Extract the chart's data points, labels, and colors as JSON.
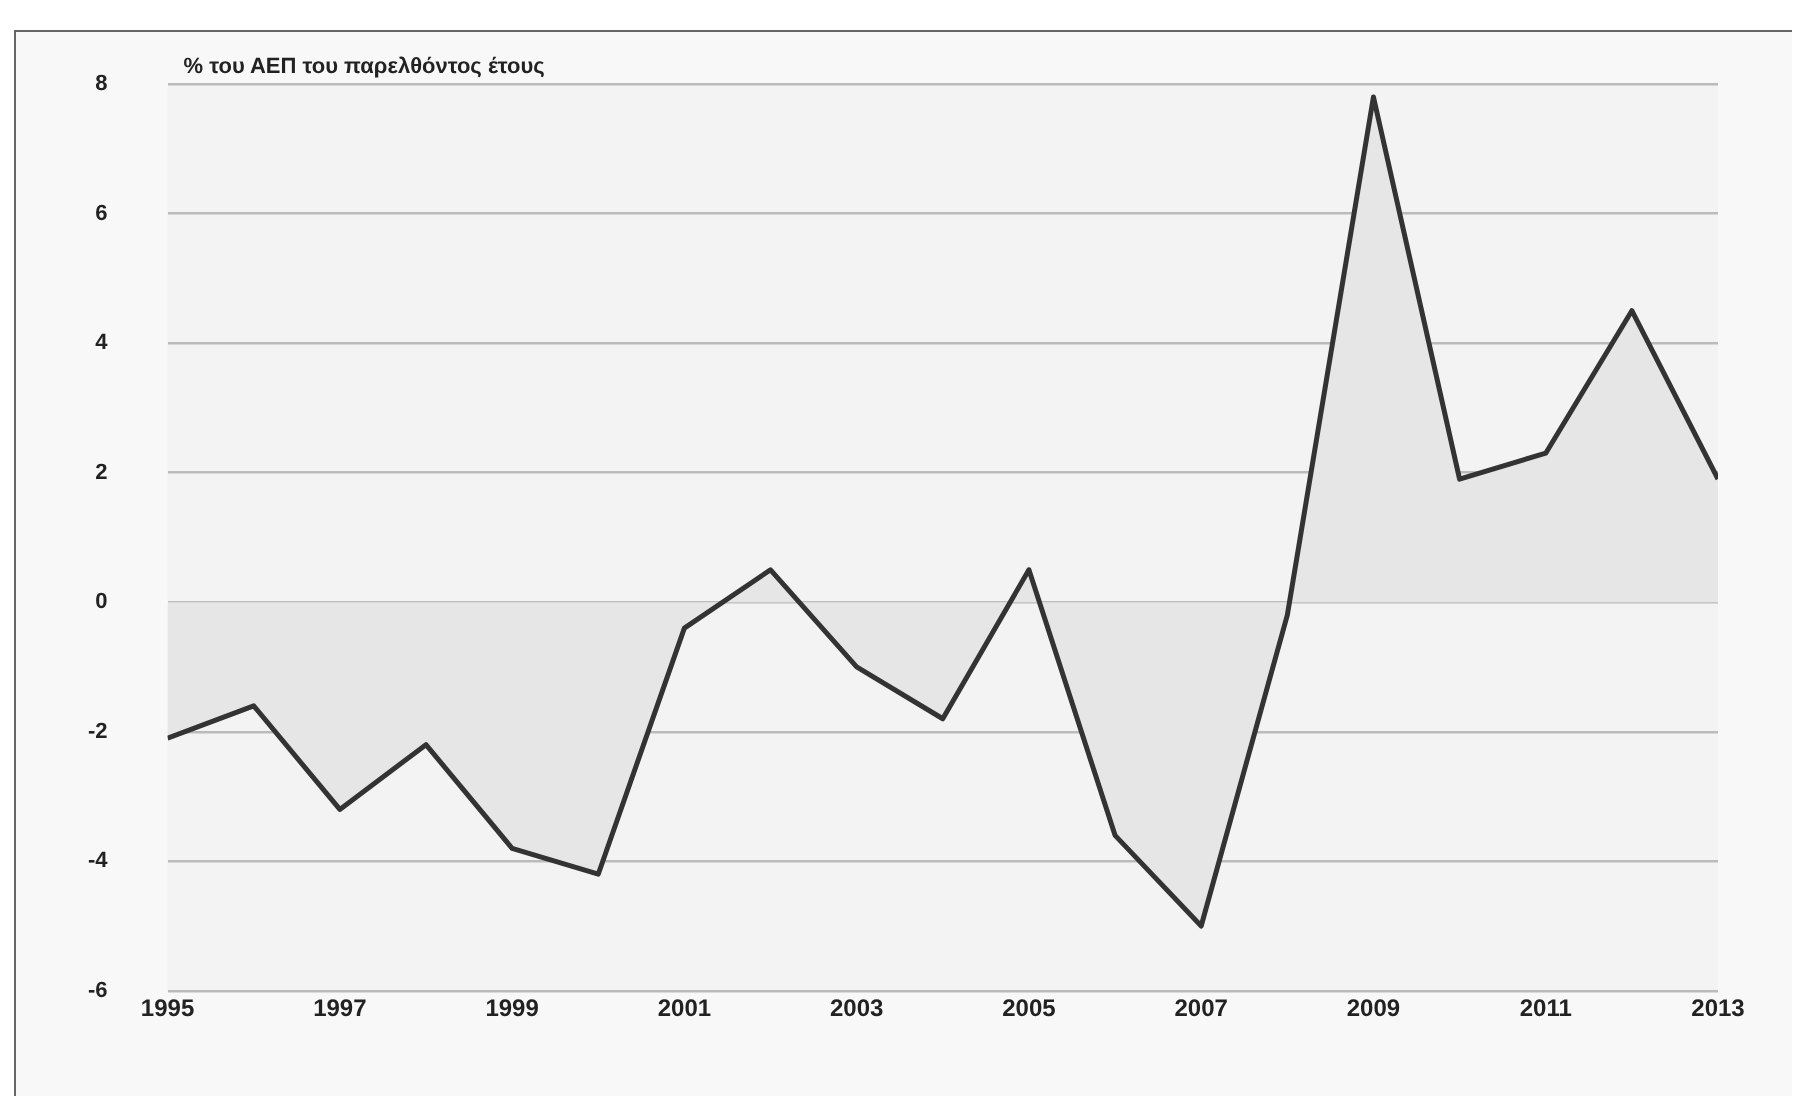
{
  "chart_data": {
    "type": "area",
    "ylabel": "% του ΑΕΠ του παρελθόντος έτους",
    "x": [
      1995,
      1996,
      1997,
      1998,
      1999,
      2000,
      2001,
      2002,
      2003,
      2004,
      2005,
      2006,
      2007,
      2008,
      2009,
      2010,
      2011,
      2012,
      2013
    ],
    "values": [
      -2.1,
      -1.6,
      -3.2,
      -2.2,
      -3.8,
      -4.2,
      -0.4,
      0.5,
      -1.0,
      -1.8,
      0.5,
      -3.6,
      -5.0,
      -0.2,
      7.8,
      1.9,
      2.3,
      4.5,
      1.9
    ],
    "color": "#333333",
    "xlim": [
      1995,
      2013
    ],
    "xticks": [
      1995,
      1997,
      1999,
      2001,
      2003,
      2005,
      2007,
      2009,
      2011,
      2013
    ],
    "ylim": [
      -6,
      8
    ],
    "yticks": [
      -6,
      -4,
      -2,
      0,
      2,
      4,
      6,
      8
    ],
    "grid": "y",
    "legend": false
  }
}
